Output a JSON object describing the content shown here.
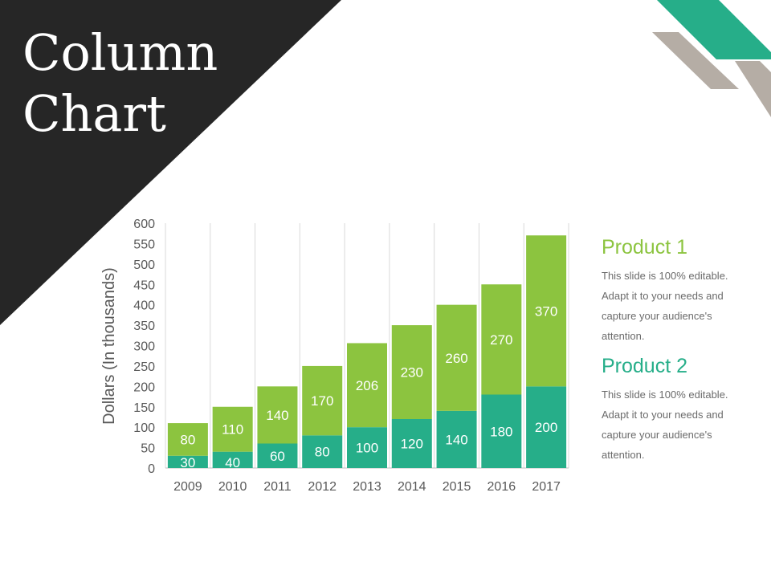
{
  "slide": {
    "title_line1": "Column",
    "title_line2": "Chart"
  },
  "colors": {
    "product1": "#8cc43f",
    "product2": "#26ae89",
    "dark": "#262626",
    "grey": "#b5ada5",
    "accent_green": "#26ae89"
  },
  "legend": [
    {
      "name": "Product 1",
      "color": "#8cc43f",
      "lines": [
        "This slide is 100% editable.",
        "Adapt it to your needs and",
        "capture your audience's",
        "attention."
      ]
    },
    {
      "name": "Product 2",
      "color": "#26ae89",
      "lines": [
        "This slide is 100% editable.",
        "Adapt it to your needs and",
        "capture your audience's",
        "attention."
      ]
    }
  ],
  "chart_data": {
    "type": "bar",
    "stacked": true,
    "title": "",
    "xlabel": "",
    "ylabel": "Dollars (In thousands)",
    "ylim": [
      0,
      600
    ],
    "ytick_step": 50,
    "categories": [
      "2009",
      "2010",
      "2011",
      "2012",
      "2013",
      "2014",
      "2015",
      "2016",
      "2017"
    ],
    "series": [
      {
        "name": "Product 2",
        "color": "#26ae89",
        "values": [
          30,
          40,
          60,
          80,
          100,
          120,
          140,
          180,
          200
        ]
      },
      {
        "name": "Product 1",
        "color": "#8cc43f",
        "values": [
          80,
          110,
          140,
          170,
          206,
          230,
          260,
          270,
          370
        ]
      }
    ],
    "legend": "right",
    "grid": "vertical"
  }
}
